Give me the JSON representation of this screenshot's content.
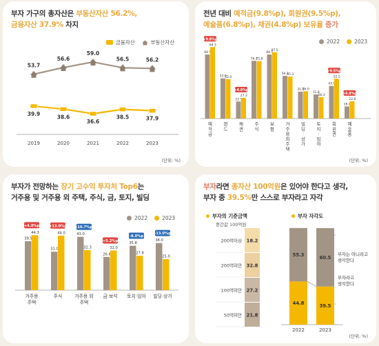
{
  "panel1": {
    "title_pre": "부자 가구의 총자산은 ",
    "title_hl": "부동산자산 56.2%,",
    "title_hl2": "금융자산 37.9%",
    "title_post": " 차지",
    "legend": {
      "financial": "금융자산",
      "realestate": "부동산자산"
    },
    "unit": "(단위: %)",
    "chart_data": {
      "type": "line",
      "x": [
        "2019",
        "2020",
        "2021",
        "2022",
        "2023"
      ],
      "series": [
        {
          "name": "부동산자산",
          "values": [
            53.7,
            56.6,
            59.0,
            56.5,
            56.2
          ],
          "color": "#a39586"
        },
        {
          "name": "금융자산",
          "values": [
            39.9,
            38.6,
            36.6,
            38.5,
            37.9
          ],
          "color": "#f5b800"
        }
      ]
    }
  },
  "panel2": {
    "title_pre": "전년 대비 ",
    "title_a": "예적금",
    "title_a_val": "(9.8%p), ",
    "title_b": "회원권",
    "title_b_val": "(9.5%p),",
    "title_c": "예술품",
    "title_c_val": "(6.8%p), ",
    "title_d": "채권",
    "title_d_val": "(4.8%p) 보유율 ",
    "title_e": "증가",
    "legend": {
      "a": "2022",
      "b": "2023"
    },
    "unit": "(단위: %)",
    "chart_data": {
      "type": "bar",
      "categories": [
        "예적금",
        "펀드",
        "채권",
        "주식",
        "보험",
        "거주용 외 주택",
        "빌딩·상가",
        "토지·임야",
        "회원권",
        "예술품"
      ],
      "series": [
        {
          "name": "2022",
          "values": [
            84.5,
            53.0,
            22.5,
            76.1,
            84.5,
            56.3,
            35.5,
            31.8,
            43.0,
            16.0
          ],
          "color": "#a39586"
        },
        {
          "name": "2023",
          "values": [
            94.3,
            52.0,
            27.3,
            75.8,
            87.5,
            55.3,
            36.0,
            28.3,
            52.5,
            22.8
          ],
          "color": "#f5b800"
        }
      ],
      "badges": [
        "+9.8%p",
        "",
        "+4.8%p",
        "",
        "",
        "",
        "",
        "",
        "+9.5%p",
        "+6.8%p"
      ]
    }
  },
  "panel3": {
    "title_l1_pre": "부자가 전망하는 ",
    "title_l1_hl": "장기 고수익 투자처 Top6",
    "title_l1_post": "는",
    "title_l2": "거주용 및 거주용 외 주택, 주식, 금, 토지, 빌딩",
    "legend": {
      "a": "2022",
      "b": "2023"
    },
    "chart_data": {
      "type": "bar",
      "categories": [
        "거주용\n주택",
        "주식",
        "거주용 외\n주택",
        "금·보석",
        "토지·임야",
        "빌딩·상가"
      ],
      "series": [
        {
          "name": "2022",
          "values": [
            39.5,
            31.0,
            43.0,
            26.8,
            35.8,
            38.0
          ],
          "color": "#a39586"
        },
        {
          "name": "2023",
          "values": [
            44.3,
            44.0,
            32.3,
            32.0,
            27.8,
            25.0
          ],
          "color": "#f5b800"
        }
      ],
      "badges": [
        "+4.8%p",
        "+13.0%p",
        "-10.7%p",
        "+5.2%p",
        "-8.0%p",
        "-13.0%p"
      ]
    }
  },
  "panel4": {
    "title_l1_pre": "부자",
    "title_l1_mid": "라면 ",
    "title_l1_hl": "총자산 100억원",
    "title_l1_post": "은 있어야 한다고 생각,",
    "title_l2_pre": "부자 중 ",
    "title_l2_hl": "39.5%",
    "title_l2_post": "만 스스로 부자라고 자각",
    "sub_left": "부자의 기준금액",
    "sub_left2": "중간값 100억원",
    "sub_right": "부자 자각도",
    "unit": "(단위: %)",
    "chart_data": [
      {
        "type": "bar",
        "categories": [
          "200억이상",
          "200억미만",
          "100억미만",
          "50억미만"
        ],
        "values": [
          18.2,
          32.8,
          27.2,
          21.8
        ]
      },
      {
        "type": "bar",
        "categories": [
          "2022",
          "2023"
        ],
        "series": [
          {
            "name": "부자는 아니라고 생각한다",
            "values": [
              55.3,
              60.5
            ],
            "color": "#a39586"
          },
          {
            "name": "부자라고 생각한다",
            "values": [
              44.8,
              39.5
            ],
            "color": "#f5b800"
          }
        ]
      }
    ],
    "label_not": "부자는 아니라고",
    "label_not2": "생각한다",
    "label_yes": "부자라고",
    "label_yes2": "생각한다"
  }
}
